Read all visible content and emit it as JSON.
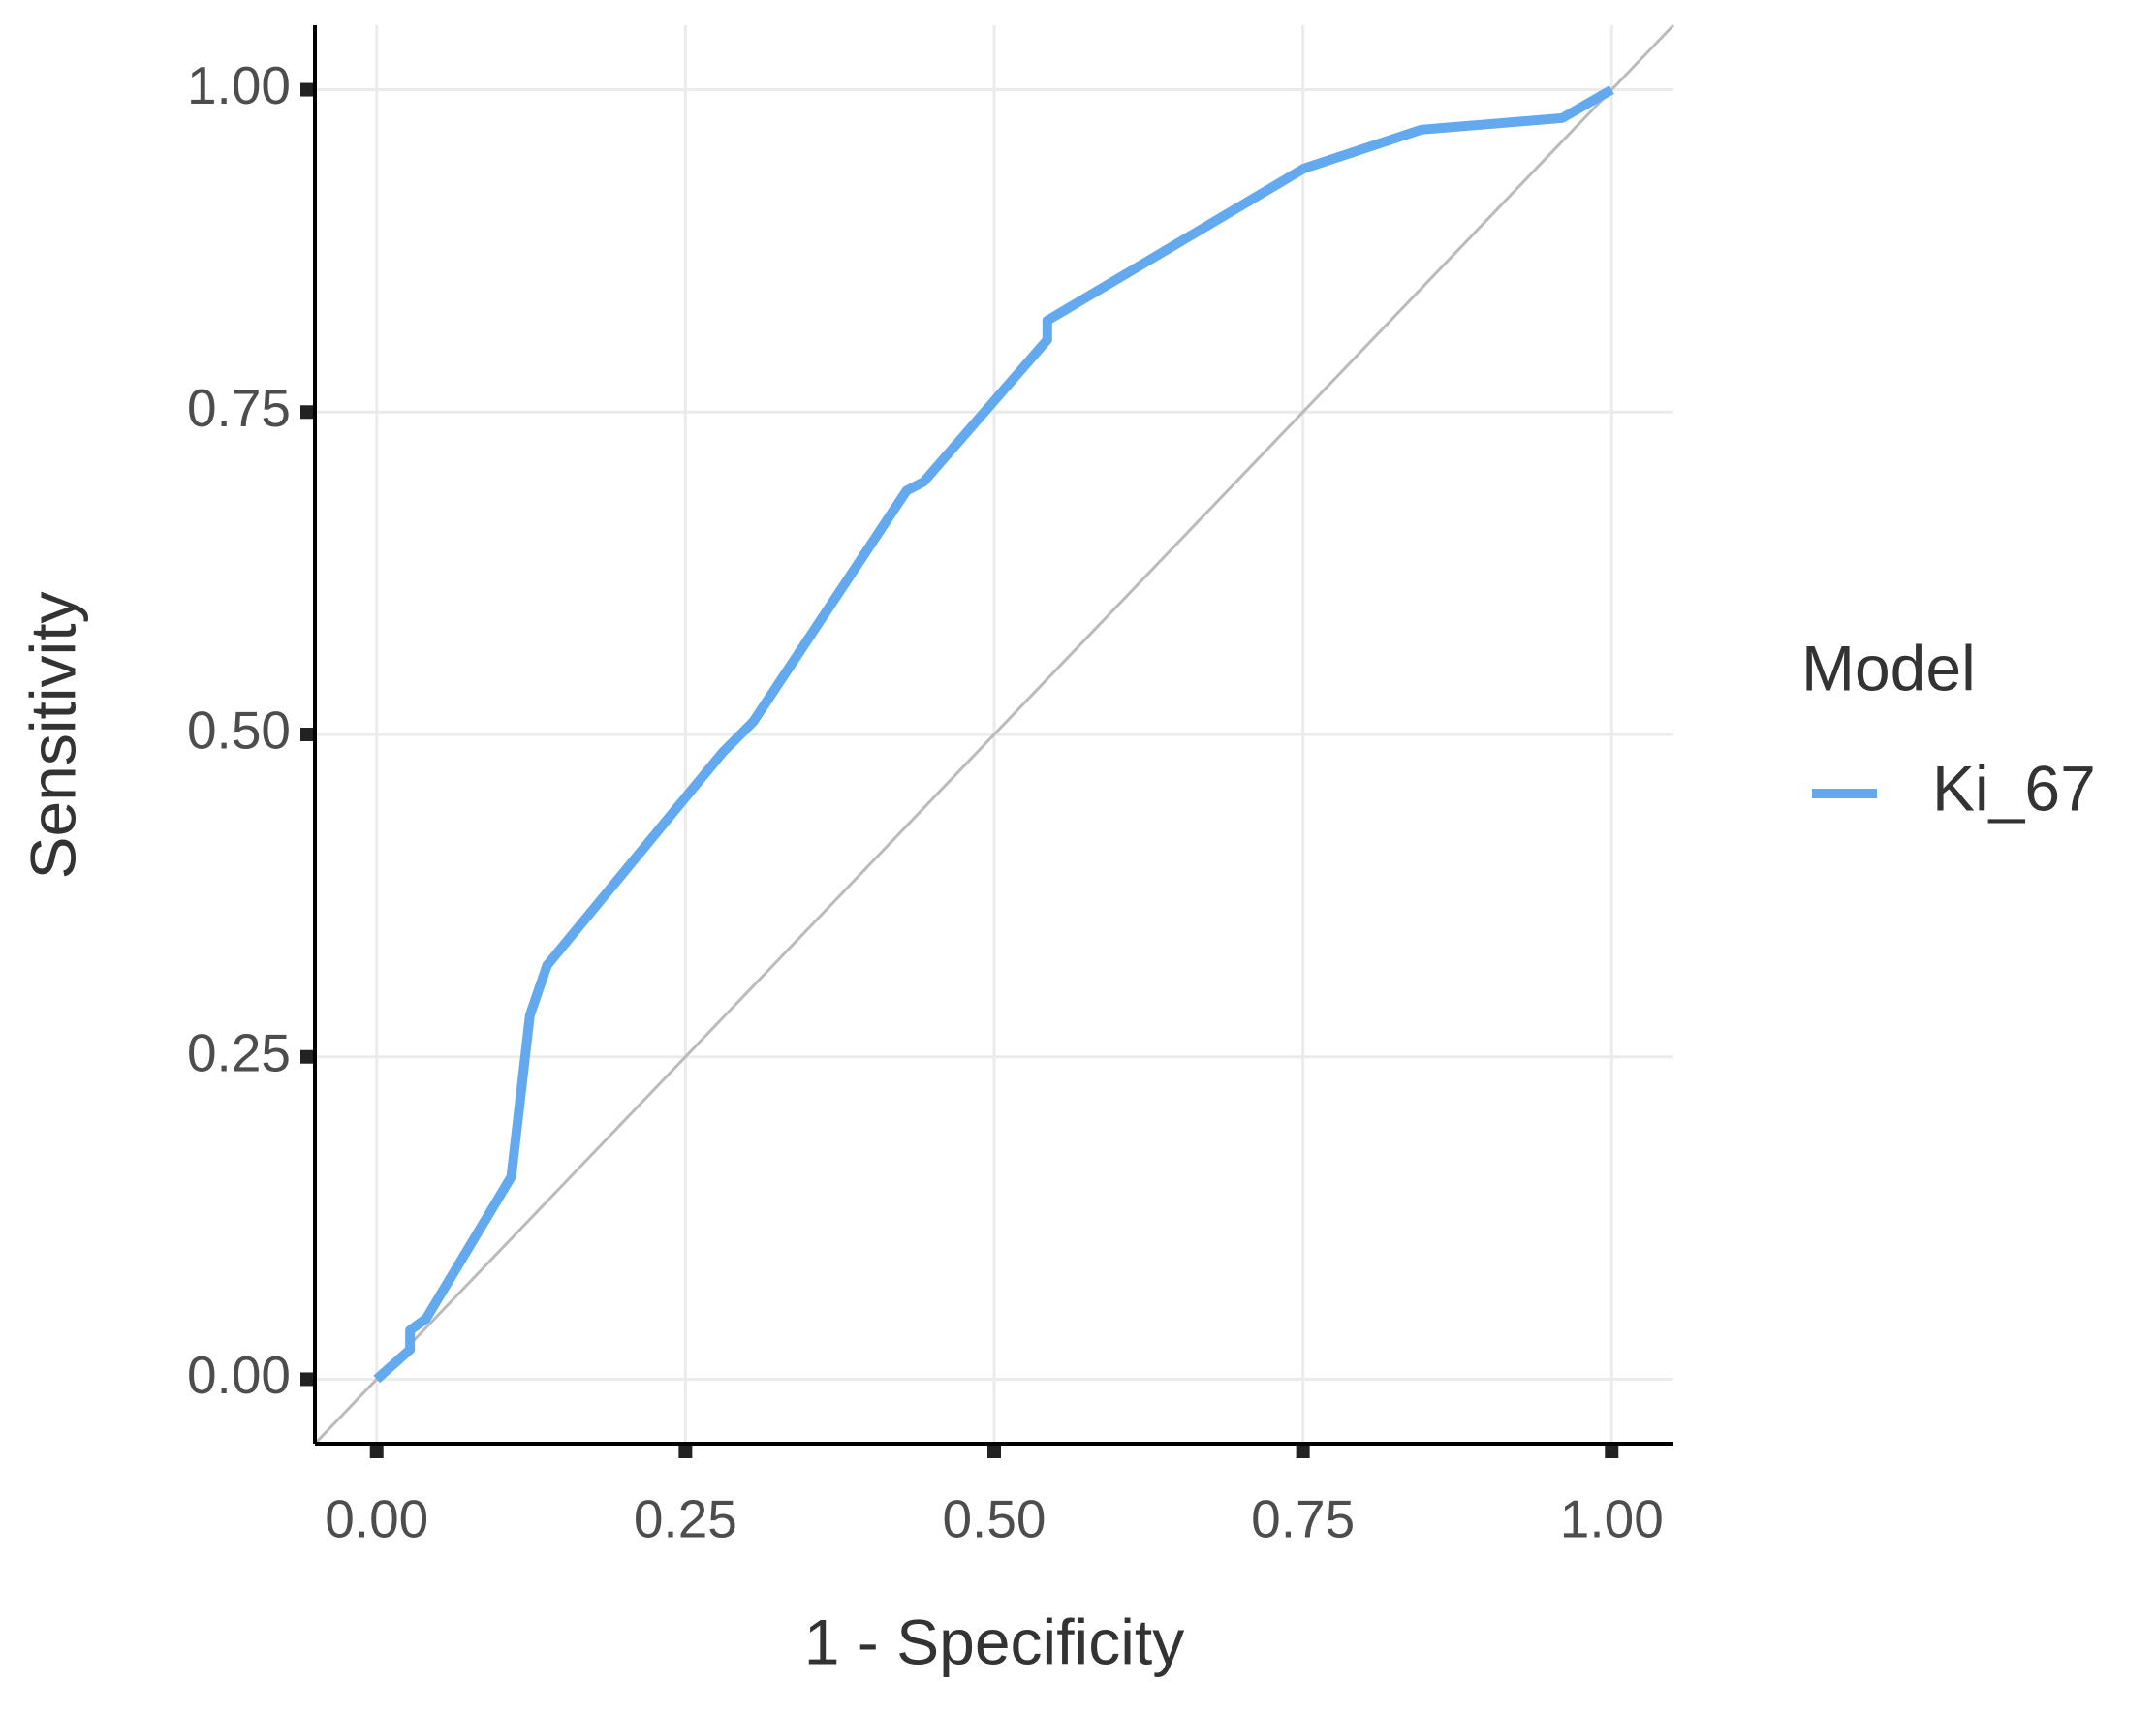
{
  "chart_data": {
    "type": "line",
    "x_label": "1 - Specificity",
    "y_label": "Sensitivity",
    "legend_title": "Model",
    "x": [
      0,
      0.027,
      0.027,
      0.04,
      0.109,
      0.124,
      0.138,
      0.28,
      0.305,
      0.429,
      0.443,
      0.543,
      0.543,
      0.751,
      0.846,
      0.96,
      1
    ],
    "series": [
      {
        "name": "Ki_67",
        "color": "#63a9f0",
        "values": [
          0,
          0.023,
          0.038,
          0.047,
          0.157,
          0.282,
          0.321,
          0.486,
          0.51,
          0.689,
          0.696,
          0.806,
          0.821,
          0.939,
          0.969,
          0.978,
          1
        ]
      }
    ],
    "xlim": [
      -0.05,
      1.05
    ],
    "ylim": [
      -0.05,
      1.05
    ],
    "xticks": [
      {
        "value": 0,
        "label": "0.00"
      },
      {
        "value": 0.25,
        "label": "0.25"
      },
      {
        "value": 0.5,
        "label": "0.50"
      },
      {
        "value": 0.75,
        "label": "0.75"
      },
      {
        "value": 1,
        "label": "1.00"
      }
    ],
    "yticks": [
      {
        "value": 0,
        "label": "0.00"
      },
      {
        "value": 0.25,
        "label": "0.25"
      },
      {
        "value": 0.5,
        "label": "0.50"
      },
      {
        "value": 0.75,
        "label": "0.75"
      },
      {
        "value": 1,
        "label": "1.00"
      }
    ],
    "grid": true,
    "reference_diagonal": true,
    "legend_position": "right"
  }
}
